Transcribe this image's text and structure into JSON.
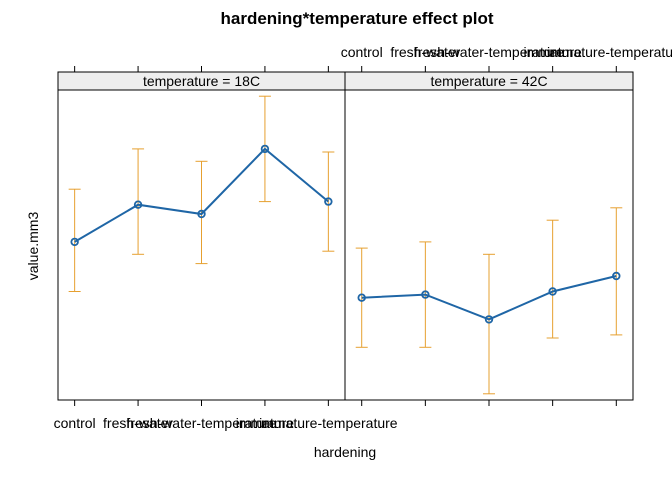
{
  "chart_data": {
    "type": "line",
    "title": "hardening*temperature effect plot",
    "xlabel": "hardening",
    "ylabel": "value.mm3",
    "categories": [
      "control",
      "fresh-water",
      "fresh-water-temperature",
      "immature",
      "immature-temperature"
    ],
    "y_tick_labels": false,
    "grid": false,
    "colors": {
      "line": "#1f66a6",
      "errorbar": "#e6a030",
      "strip_bg": "#eeeeee",
      "frame": "#000000"
    },
    "panels": [
      {
        "strip": "temperature = 18C",
        "fit": [
          0.51,
          0.63,
          0.6,
          0.81,
          0.64
        ],
        "lower": [
          0.35,
          0.47,
          0.44,
          0.64,
          0.48
        ],
        "upper": [
          0.68,
          0.81,
          0.77,
          0.98,
          0.8
        ]
      },
      {
        "strip": "temperature = 42C",
        "fit": [
          0.33,
          0.34,
          0.26,
          0.35,
          0.4
        ],
        "lower": [
          0.17,
          0.17,
          0.02,
          0.2,
          0.21
        ],
        "upper": [
          0.49,
          0.51,
          0.47,
          0.58,
          0.62
        ]
      }
    ]
  }
}
